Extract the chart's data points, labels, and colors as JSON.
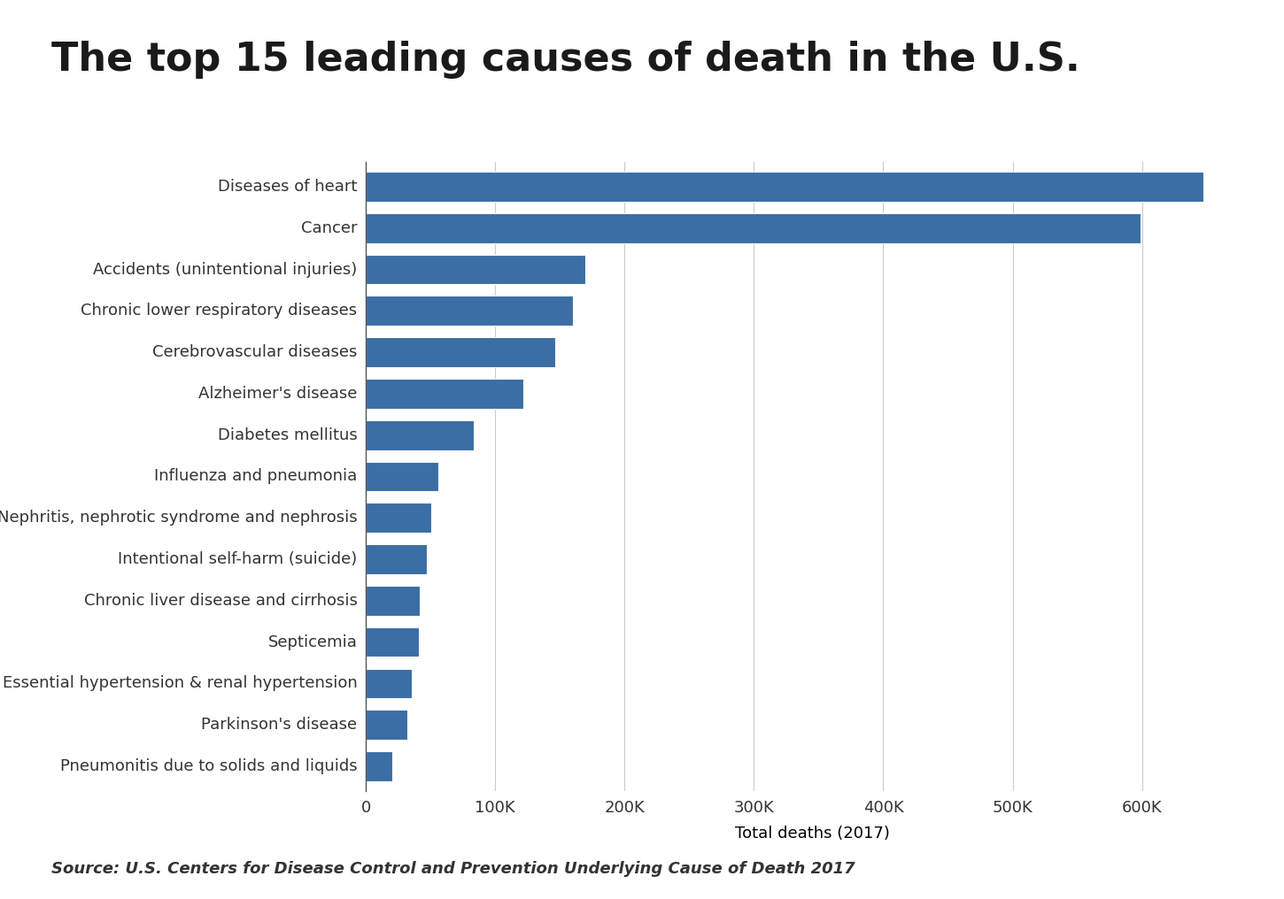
{
  "title": "The top 15 leading causes of death in the U.S.",
  "source_text": "Source: U.S. Centers for Disease Control and Prevention Underlying Cause of Death 2017",
  "xlabel": "Total deaths (2017)",
  "categories": [
    "Diseases of heart",
    "Cancer",
    "Accidents (unintentional injuries)",
    "Chronic lower respiratory diseases",
    "Cerebrovascular diseases",
    "Alzheimer's disease",
    "Diabetes mellitus",
    "Influenza and pneumonia",
    "Nephritis, nephrotic syndrome and nephrosis",
    "Intentional self-harm (suicide)",
    "Chronic liver disease and cirrhosis",
    "Septicemia",
    "Essential hypertension & renal hypertension",
    "Parkinson's disease",
    "Pneumonitis due to solids and liquids"
  ],
  "values": [
    647457,
    599108,
    169936,
    160201,
    146383,
    121404,
    83564,
    55672,
    50633,
    47173,
    41743,
    40922,
    35316,
    31963,
    20108
  ],
  "bar_color": "#3a6ea5",
  "background_color": "#ffffff",
  "title_fontsize": 32,
  "label_fontsize": 13,
  "tick_fontsize": 13,
  "source_fontsize": 13,
  "xlim": [
    0,
    690000
  ],
  "xticks": [
    0,
    100000,
    200000,
    300000,
    400000,
    500000,
    600000
  ],
  "xtick_labels": [
    "0",
    "100K",
    "200K",
    "300K",
    "400K",
    "500K",
    "600K"
  ]
}
